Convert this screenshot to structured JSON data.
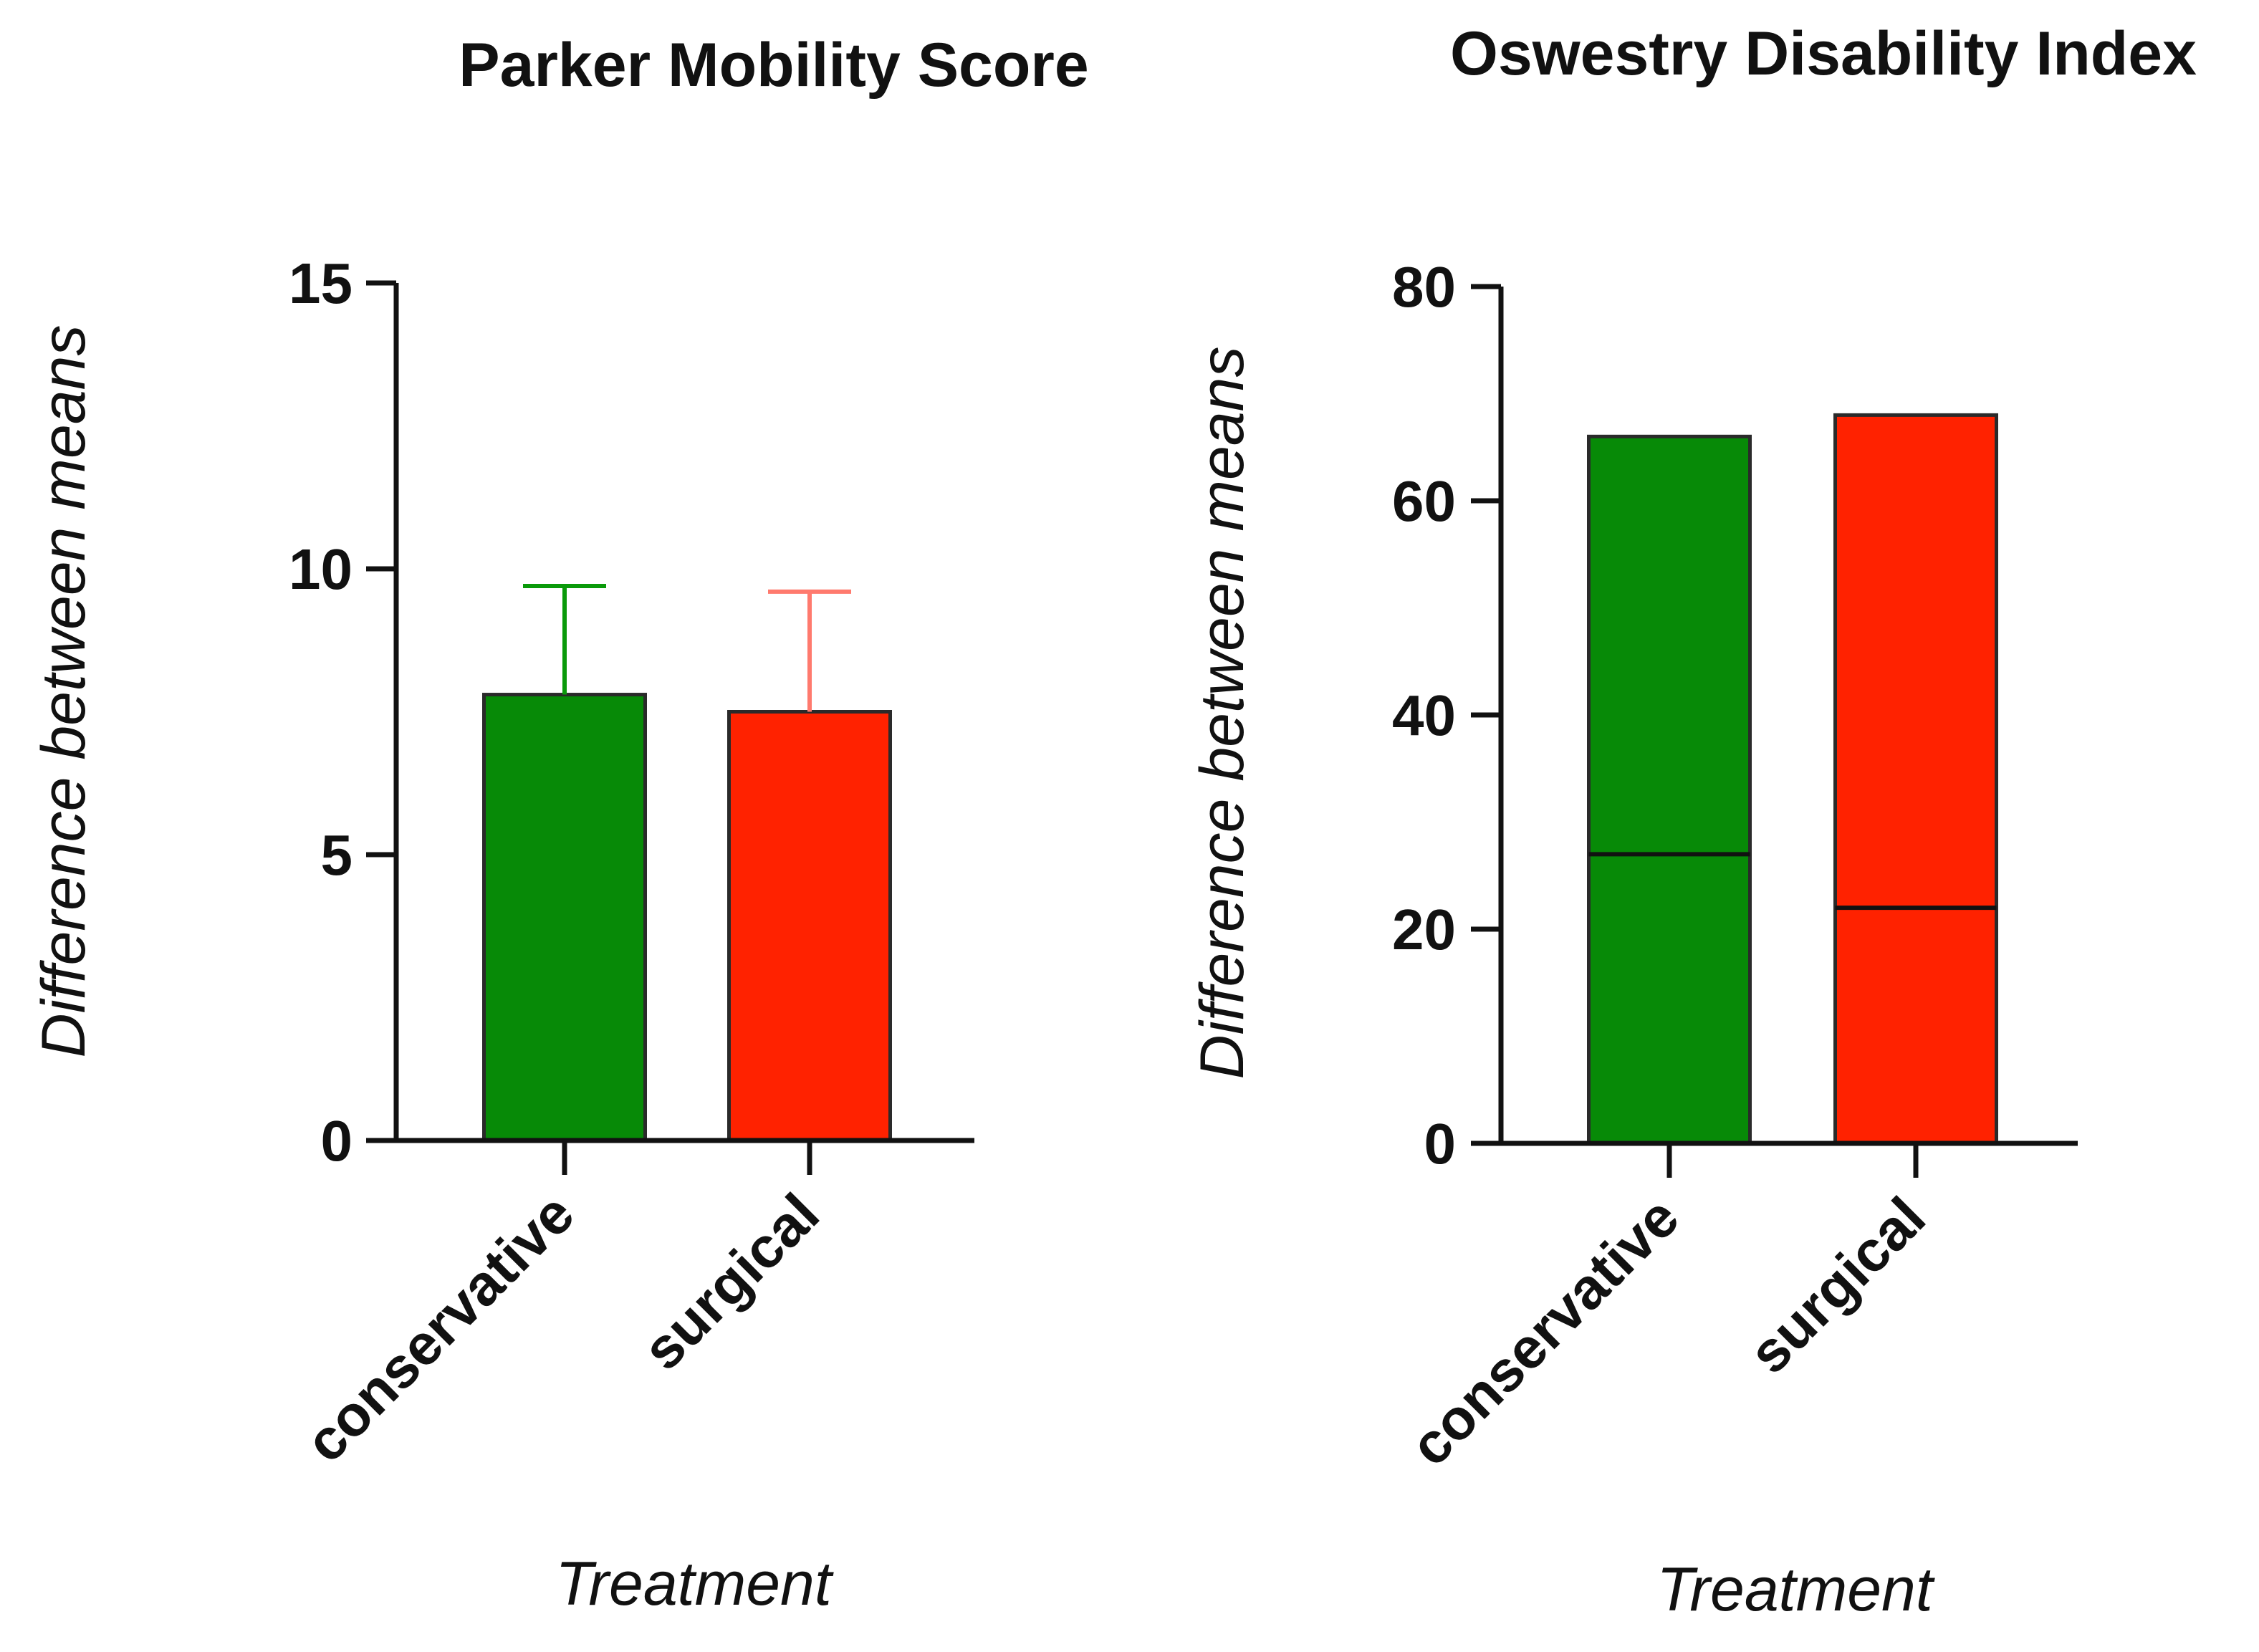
{
  "chart_data": [
    {
      "type": "bar",
      "title": "Parker Mobility Score",
      "xlabel": "Treatment",
      "ylabel": "Difference between means",
      "categories": [
        "conservative",
        "surgical"
      ],
      "values": [
        7.8,
        7.5
      ],
      "error_upper": [
        9.7,
        9.6
      ],
      "ylim": [
        0,
        15
      ],
      "yticks": [
        "0",
        "5",
        "10",
        "15"
      ],
      "colors": [
        "#078a07",
        "#ff2200"
      ],
      "error_colors": [
        "#0a9a0a",
        "#ff7a6e"
      ],
      "grid": false
    },
    {
      "type": "bar",
      "title": "Oswestry Disability Index",
      "xlabel": "Treatment",
      "ylabel": "Difference between means",
      "categories": [
        "conservative",
        "surgical"
      ],
      "values": [
        66,
        68
      ],
      "inner_line": [
        27,
        22
      ],
      "ylim": [
        0,
        80
      ],
      "yticks": [
        "0",
        "20",
        "40",
        "60",
        "80"
      ],
      "colors": [
        "#078a07",
        "#ff2200"
      ],
      "grid": false
    }
  ]
}
